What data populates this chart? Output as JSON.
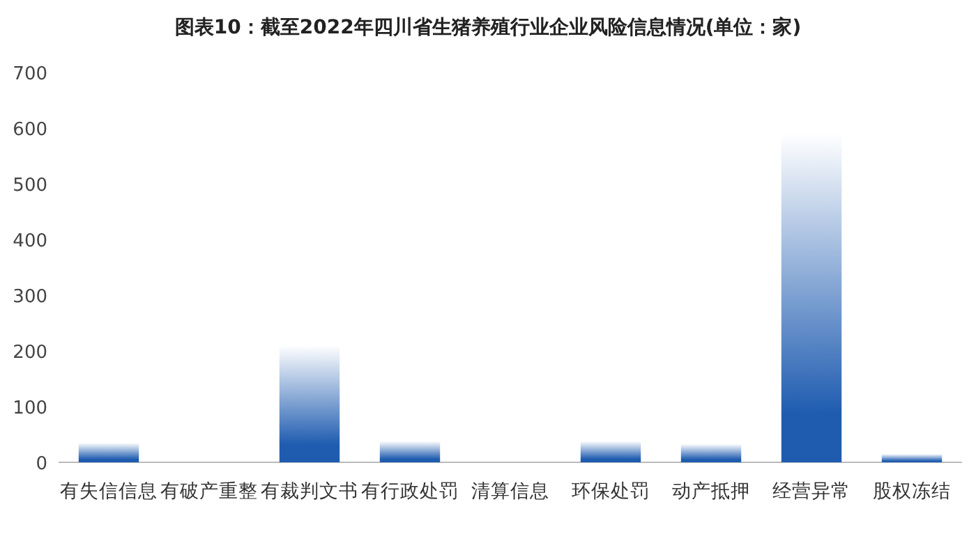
{
  "chart_data": {
    "type": "bar",
    "title": "图表10：截至2022年四川省生猪养殖行业企业风险信息情况(单位：家)",
    "categories": [
      "有失信信息",
      "有破产重整",
      "有裁判文书",
      "有行政处罚",
      "清算信息",
      "环保处罚",
      "动产抵押",
      "经营异常",
      "股权冻结"
    ],
    "values": [
      35,
      0,
      210,
      38,
      0,
      38,
      33,
      590,
      15
    ],
    "color": "#1f5cb0",
    "ylim": [
      0,
      700
    ],
    "yticks": [
      0,
      100,
      200,
      300,
      400,
      500,
      600,
      700
    ],
    "grid": false
  }
}
